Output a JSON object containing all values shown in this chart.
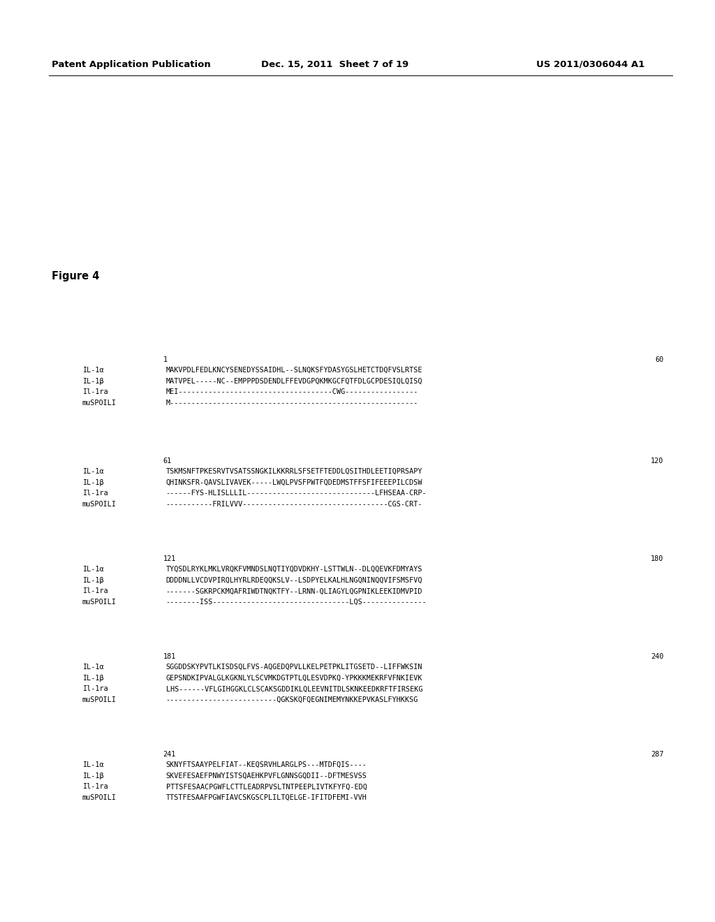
{
  "header_left": "Patent Application Publication",
  "header_mid": "Dec. 15, 2011  Sheet 7 of 19",
  "header_right": "US 2011/0306044 A1",
  "figure_label": "Figure 4",
  "background_color": "#ffffff",
  "text_color": "#000000",
  "blocks": [
    {
      "range_start": "1",
      "range_end": "60",
      "rows": [
        {
          "label": "IL-1α",
          "seq": "MAKVPDLFEDLKNCYSENEDYSSAIDHL--SLNQKSFYDASYGSLHETCTDQFVSLRTSE"
        },
        {
          "label": "IL-1β",
          "seq": "MATVPEL-----NC--EMPPPDSDENDLFFEVDGPQKMKGCFQTFDLGCPDESIQLQISQ"
        },
        {
          "label": "Il-1ra",
          "seq": "MEI------------------------------------CWG-----------------"
        },
        {
          "label": "muSPOILI",
          "seq": "M----------------------------------------------------------"
        }
      ]
    },
    {
      "range_start": "61",
      "range_end": "120",
      "rows": [
        {
          "label": "IL-1α",
          "seq": "TSKMSNFTPKESRVTVSATSSNGKILKKRRLSFSETFTEDDLQSITHDLEETIQPRSAPY"
        },
        {
          "label": "IL-1β",
          "seq": "QHINKSFR-QAVSLIVAVEK-----LWQLPVSFPWTFQDEDMSTFFSFIFEEEPILCDSW"
        },
        {
          "label": "Il-1ra",
          "seq": "------FYS-HLISLLLIL------------------------------LFHSEAA-CRP-"
        },
        {
          "label": "muSPOILI",
          "seq": "-----------FRILVVV----------------------------------CGS-CRT-"
        }
      ]
    },
    {
      "range_start": "121",
      "range_end": "180",
      "rows": [
        {
          "label": "IL-1α",
          "seq": "TYQSDLRYKLMKLVRQKFVMNDSLNQTIYQDVDKHY-LSTTWLN--DLQQEVKFDMYAYS"
        },
        {
          "label": "IL-1β",
          "seq": "DDDDNLLVCDVPIRQLHYRLRDEQQKSLV--LSDPYELKALHLNGQNINQQVIFSMSFVQ"
        },
        {
          "label": "Il-1ra",
          "seq": "-------SGKRPCKMQAFRIWDTNQKTFY--LRNN-QLIAGYLQGPNIKLEEKIDMVPID"
        },
        {
          "label": "muSPOILI",
          "seq": "--------ISS--------------------------------LQS---------------"
        }
      ]
    },
    {
      "range_start": "181",
      "range_end": "240",
      "rows": [
        {
          "label": "IL-1α",
          "seq": "SGGDDSKYPVTLKISDSQLFVS-AQGEDQPVLLKELPETPKLITGSETD--LIFFWKSIN"
        },
        {
          "label": "IL-1β",
          "seq": "GEPSNDKIPVALGLKGKNLYLSCVMKDGTPTLQLESVDPKQ-YPKKKMEKRFVFNKIEVK"
        },
        {
          "label": "Il-1ra",
          "seq": "LHS------VFLGIHGGKLCLSCAKSGDDIKLQLEEVNITDLSKNKEEDKRFTFIRSEKG"
        },
        {
          "label": "muSPOILI",
          "seq": "--------------------------QGKSKQFQEGNIMEMYNKKEPVKASLFYHKKSG"
        }
      ]
    },
    {
      "range_start": "241",
      "range_end": "287",
      "rows": [
        {
          "label": "IL-1α",
          "seq": "SKNYFTSAAYPELFIAT--KEQSRVHLARGLPS---MTDFQIS----"
        },
        {
          "label": "IL-1β",
          "seq": "SKVEFESAEFPNWYISTSQAEHKPVFLGNNSGQDII--DFTMESVSS"
        },
        {
          "label": "Il-1ra",
          "seq": "PTTSFESAACPGWFLCTTLEADRPVSLTNTPEEPLIVTKFYFQ-EDQ"
        },
        {
          "label": "muSPOILI",
          "seq": "TTSTFESAAFPGWFIAVCSKGSCPLILTQELGE-IFITDFEMI-VVH"
        }
      ]
    }
  ]
}
